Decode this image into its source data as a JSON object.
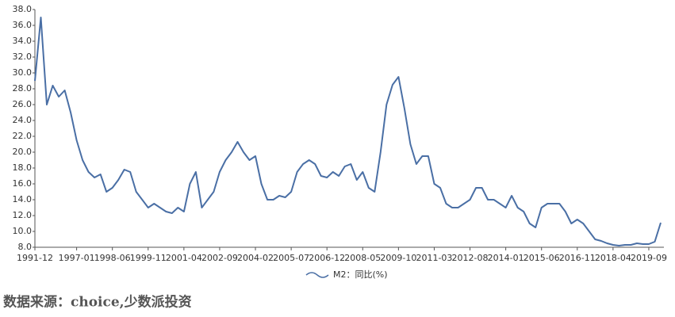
{
  "chart_data": {
    "type": "line",
    "categories": [
      "1991-12",
      null,
      null,
      null,
      null,
      null,
      null,
      "1997-01",
      null,
      null,
      null,
      null,
      null,
      "1998-06",
      null,
      null,
      null,
      null,
      null,
      "1999-11",
      null,
      null,
      null,
      null,
      null,
      "2001-04",
      null,
      null,
      null,
      null,
      null,
      "2002-09",
      null,
      null,
      null,
      null,
      null,
      "2004-02",
      null,
      null,
      null,
      null,
      null,
      "2005-07",
      null,
      null,
      null,
      null,
      null,
      "2006-12",
      null,
      null,
      null,
      null,
      null,
      "2008-05",
      null,
      null,
      null,
      null,
      null,
      "2009-10",
      null,
      null,
      null,
      null,
      null,
      "2011-03",
      null,
      null,
      null,
      null,
      null,
      "2012-08",
      null,
      null,
      null,
      null,
      null,
      "2014-01",
      null,
      null,
      null,
      null,
      null,
      "2015-06",
      null,
      null,
      null,
      null,
      null,
      "2016-11",
      null,
      null,
      null,
      null,
      null,
      "2018-04",
      null,
      null,
      null,
      null,
      null,
      "2019-09",
      null,
      null
    ],
    "series": [
      {
        "name": "M2：同比(%)",
        "color": "#4a6fa5",
        "values": [
          29,
          37,
          26,
          28.4,
          27,
          27.8,
          25,
          21.5,
          19,
          17.5,
          16.8,
          17.2,
          15,
          15.5,
          16.5,
          17.8,
          17.5,
          15,
          14,
          13,
          13.5,
          13,
          12.5,
          12.3,
          13,
          12.5,
          16,
          17.5,
          13,
          14,
          15,
          17.5,
          19,
          20,
          21.3,
          20,
          19,
          19.5,
          16,
          14,
          14,
          14.5,
          14.3,
          15,
          17.5,
          18.5,
          19,
          18.5,
          17,
          16.8,
          17.5,
          17,
          18.2,
          18.5,
          16.5,
          17.5,
          15.5,
          15,
          20,
          26,
          28.5,
          29.5,
          25.5,
          21,
          18.5,
          19.5,
          19.5,
          16,
          15.5,
          13.5,
          13,
          13,
          13.5,
          14,
          15.5,
          15.5,
          14,
          14,
          13.5,
          13,
          14.5,
          13,
          12.5,
          11,
          10.5,
          13,
          13.5,
          13.5,
          13.5,
          12.5,
          11,
          11.5,
          11,
          10,
          9,
          8.8,
          8.5,
          8.3,
          8.2,
          8.3,
          8.3,
          8.5,
          8.4,
          8.4,
          8.7,
          11.1
        ]
      }
    ],
    "ylim": [
      8,
      38
    ],
    "yticks": [
      {
        "value": 8,
        "label": "8.0"
      },
      {
        "value": 10,
        "label": "10.0"
      },
      {
        "value": 12,
        "label": "12.0"
      },
      {
        "value": 14,
        "label": "14.0"
      },
      {
        "value": 16,
        "label": "16.0"
      },
      {
        "value": 18,
        "label": "18.0"
      },
      {
        "value": 20,
        "label": "20.0"
      },
      {
        "value": 22,
        "label": "22.0"
      },
      {
        "value": 24,
        "label": "24.0"
      },
      {
        "value": 26,
        "label": "26.0"
      },
      {
        "value": 28,
        "label": "28.0"
      },
      {
        "value": 30,
        "label": "30.0"
      },
      {
        "value": 32,
        "label": "32.0"
      },
      {
        "value": 34,
        "label": "34.0"
      },
      {
        "value": 36,
        "label": "36.0"
      },
      {
        "value": 38,
        "label": "38.0"
      }
    ],
    "grid": false,
    "source": "数据来源：choice,少数派投资"
  }
}
